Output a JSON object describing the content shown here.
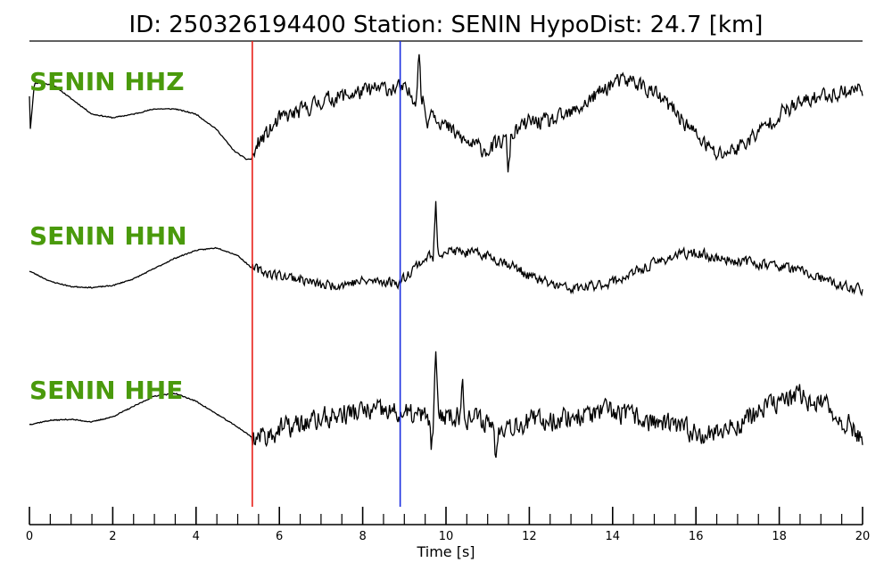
{
  "title": "ID: 250326194400   Station: SENIN   HypoDist:    24.7 [km]",
  "colors": {
    "trace": "#000000",
    "label": "#4a9a0c",
    "p_pick": "#e8201a",
    "s_pick": "#1a2ee0"
  },
  "chart_data": {
    "type": "line",
    "xlabel": "Time [s]",
    "xlim": [
      0,
      20
    ],
    "x_major_ticks": [
      0,
      2,
      4,
      6,
      8,
      10,
      12,
      14,
      16,
      18,
      20
    ],
    "x_minor_step": 0.5,
    "grid": false,
    "picks": [
      {
        "time": 5.35,
        "color": "#e8201a"
      },
      {
        "time": 8.9,
        "color": "#1a2ee0"
      }
    ],
    "series": [
      {
        "name": "SENIN HHZ",
        "keypoints": [
          [
            0.0,
            0.3
          ],
          [
            0.02,
            -0.35
          ],
          [
            0.12,
            0.55
          ],
          [
            0.3,
            0.55
          ],
          [
            0.6,
            0.5
          ],
          [
            1.0,
            0.25
          ],
          [
            1.5,
            -0.05
          ],
          [
            2.0,
            -0.12
          ],
          [
            2.5,
            -0.05
          ],
          [
            3.0,
            0.05
          ],
          [
            3.5,
            0.05
          ],
          [
            4.0,
            -0.05
          ],
          [
            4.5,
            -0.35
          ],
          [
            4.9,
            -0.75
          ],
          [
            5.2,
            -0.92
          ],
          [
            5.35,
            -0.92
          ],
          [
            5.5,
            -0.6
          ],
          [
            5.8,
            -0.35
          ],
          [
            6.0,
            -0.15
          ],
          [
            6.5,
            0.0
          ],
          [
            7.0,
            0.2
          ],
          [
            7.5,
            0.3
          ],
          [
            8.0,
            0.38
          ],
          [
            8.5,
            0.45
          ],
          [
            8.9,
            0.45
          ],
          [
            9.2,
            0.3
          ],
          [
            9.6,
            0.1
          ],
          [
            10.0,
            -0.3
          ],
          [
            10.5,
            -0.6
          ],
          [
            11.0,
            -0.75
          ],
          [
            11.5,
            -0.5
          ],
          [
            12.0,
            -0.2
          ],
          [
            12.5,
            -0.2
          ],
          [
            13.0,
            -0.05
          ],
          [
            13.5,
            0.25
          ],
          [
            14.0,
            0.55
          ],
          [
            14.5,
            0.6
          ],
          [
            15.0,
            0.35
          ],
          [
            15.5,
            0.0
          ],
          [
            16.0,
            -0.45
          ],
          [
            16.5,
            -0.85
          ],
          [
            17.0,
            -0.7
          ],
          [
            17.5,
            -0.4
          ],
          [
            18.0,
            -0.05
          ],
          [
            18.5,
            0.15
          ],
          [
            19.0,
            0.3
          ],
          [
            19.5,
            0.38
          ],
          [
            20.0,
            0.45
          ]
        ],
        "noise_start": 5.35,
        "noise_amp": 0.22,
        "spikes": [
          [
            9.35,
            1.1
          ],
          [
            9.55,
            -0.5
          ],
          [
            11.5,
            -0.7
          ]
        ],
        "seed": 11
      },
      {
        "name": "SENIN HHN",
        "keypoints": [
          [
            0.0,
            -0.1
          ],
          [
            0.5,
            -0.3
          ],
          [
            1.0,
            -0.4
          ],
          [
            1.5,
            -0.42
          ],
          [
            2.0,
            -0.38
          ],
          [
            2.5,
            -0.25
          ],
          [
            3.0,
            -0.05
          ],
          [
            3.5,
            0.15
          ],
          [
            4.0,
            0.3
          ],
          [
            4.5,
            0.35
          ],
          [
            5.0,
            0.2
          ],
          [
            5.35,
            -0.05
          ],
          [
            5.8,
            -0.15
          ],
          [
            6.5,
            -0.25
          ],
          [
            7.0,
            -0.38
          ],
          [
            7.5,
            -0.35
          ],
          [
            8.0,
            -0.3
          ],
          [
            8.5,
            -0.3
          ],
          [
            8.9,
            -0.32
          ],
          [
            9.2,
            -0.05
          ],
          [
            9.6,
            0.2
          ],
          [
            10.0,
            0.3
          ],
          [
            10.5,
            0.25
          ],
          [
            11.0,
            0.2
          ],
          [
            11.5,
            0.05
          ],
          [
            12.0,
            -0.2
          ],
          [
            12.5,
            -0.35
          ],
          [
            13.0,
            -0.45
          ],
          [
            13.5,
            -0.4
          ],
          [
            14.0,
            -0.3
          ],
          [
            14.5,
            -0.15
          ],
          [
            15.0,
            0.05
          ],
          [
            15.5,
            0.2
          ],
          [
            16.0,
            0.25
          ],
          [
            16.5,
            0.15
          ],
          [
            17.0,
            0.1
          ],
          [
            17.5,
            0.05
          ],
          [
            18.0,
            0.0
          ],
          [
            18.5,
            -0.1
          ],
          [
            19.0,
            -0.25
          ],
          [
            19.5,
            -0.4
          ],
          [
            20.0,
            -0.45
          ]
        ],
        "noise_start": 5.35,
        "noise_amp": 0.14,
        "spikes": [
          [
            9.75,
            1.05
          ],
          [
            9.7,
            -0.2
          ]
        ],
        "seed": 23
      },
      {
        "name": "SENIN HHE",
        "keypoints": [
          [
            0.0,
            -0.1
          ],
          [
            0.5,
            -0.02
          ],
          [
            1.0,
            0.0
          ],
          [
            1.5,
            -0.05
          ],
          [
            2.0,
            0.05
          ],
          [
            2.5,
            0.25
          ],
          [
            3.0,
            0.45
          ],
          [
            3.5,
            0.5
          ],
          [
            4.0,
            0.35
          ],
          [
            4.5,
            0.1
          ],
          [
            5.0,
            -0.15
          ],
          [
            5.35,
            -0.35
          ],
          [
            5.7,
            -0.3
          ],
          [
            6.0,
            -0.2
          ],
          [
            6.5,
            -0.1
          ],
          [
            7.0,
            0.0
          ],
          [
            7.5,
            0.1
          ],
          [
            8.0,
            0.15
          ],
          [
            8.5,
            0.15
          ],
          [
            8.9,
            0.1
          ],
          [
            9.5,
            0.05
          ],
          [
            10.0,
            0.1
          ],
          [
            10.5,
            0.05
          ],
          [
            11.0,
            -0.05
          ],
          [
            11.5,
            -0.1
          ],
          [
            12.0,
            -0.05
          ],
          [
            12.5,
            0.0
          ],
          [
            13.0,
            0.05
          ],
          [
            13.5,
            0.1
          ],
          [
            14.0,
            0.15
          ],
          [
            14.5,
            0.05
          ],
          [
            15.0,
            -0.05
          ],
          [
            15.5,
            -0.15
          ],
          [
            16.0,
            -0.25
          ],
          [
            16.5,
            -0.25
          ],
          [
            17.0,
            -0.1
          ],
          [
            17.5,
            0.15
          ],
          [
            18.0,
            0.35
          ],
          [
            18.5,
            0.45
          ],
          [
            19.0,
            0.3
          ],
          [
            19.5,
            0.0
          ],
          [
            20.0,
            -0.35
          ]
        ],
        "noise_start": 5.35,
        "noise_amp": 0.3,
        "spikes": [
          [
            9.75,
            1.2
          ],
          [
            9.65,
            -0.8
          ],
          [
            10.4,
            0.7
          ],
          [
            11.2,
            -0.8
          ]
        ],
        "seed": 37
      }
    ]
  }
}
